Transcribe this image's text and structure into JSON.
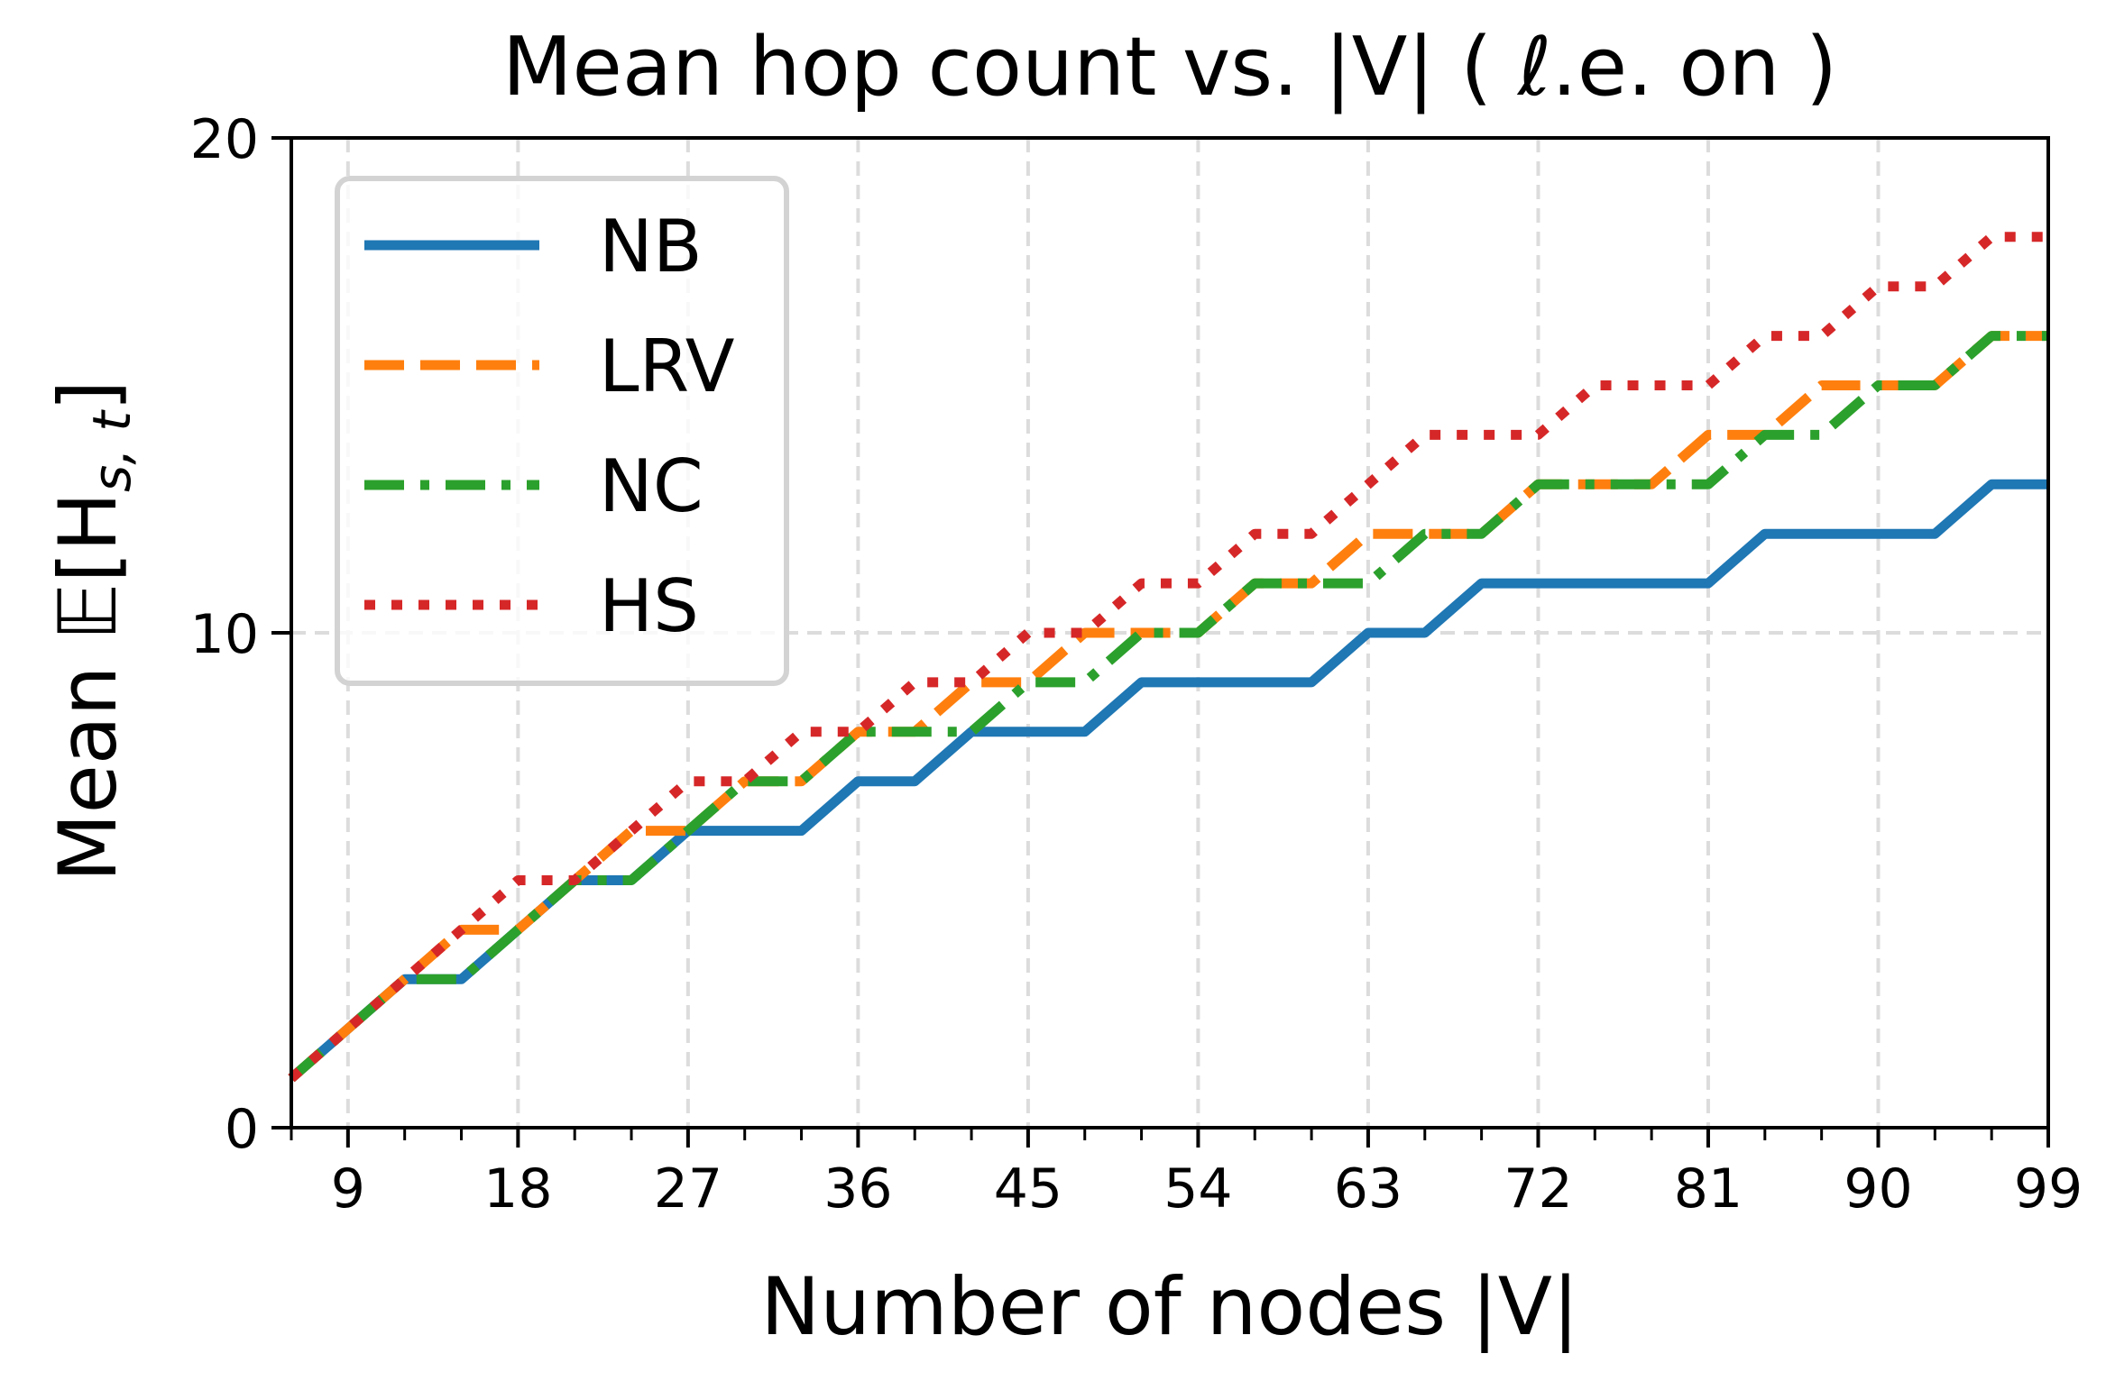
{
  "chart_data": {
    "type": "line",
    "title": "Mean hop count vs. |V| ( ℓ.e. on )",
    "xlabel": "Number of nodes |V|",
    "ylabel": "Mean Ê[H_{s,t}]",
    "xlim": [
      6,
      99
    ],
    "ylim": [
      0,
      20
    ],
    "xticks": [
      9,
      18,
      27,
      36,
      45,
      54,
      63,
      72,
      81,
      90,
      99
    ],
    "xminor_step": 3,
    "yticks": [
      0,
      10,
      20
    ],
    "grid": true,
    "legend_position": "upper left",
    "x": [
      6,
      9,
      12,
      15,
      18,
      21,
      24,
      27,
      30,
      33,
      36,
      39,
      42,
      45,
      48,
      51,
      54,
      57,
      60,
      63,
      66,
      69,
      72,
      75,
      78,
      81,
      84,
      87,
      90,
      93,
      96,
      99
    ],
    "series": [
      {
        "name": "NB",
        "color": "#1f77b4",
        "style": "solid",
        "values": [
          1,
          2,
          3,
          3,
          4,
          5,
          5,
          6,
          6,
          6,
          7,
          7,
          8,
          8,
          8,
          9,
          9,
          9,
          9,
          10,
          10,
          11,
          11,
          11,
          11,
          11,
          12,
          12,
          12,
          12,
          13,
          13
        ]
      },
      {
        "name": "LRV",
        "color": "#ff7f0e",
        "style": "dashed",
        "values": [
          1,
          2,
          3,
          4,
          4,
          5,
          6,
          6,
          7,
          7,
          8,
          8,
          9,
          9,
          10,
          10,
          10,
          11,
          11,
          12,
          12,
          12,
          13,
          13,
          13,
          14,
          14,
          15,
          15,
          15,
          16,
          16
        ]
      },
      {
        "name": "NC",
        "color": "#2ca02c",
        "style": "dashdot",
        "values": [
          1,
          2,
          3,
          3,
          4,
          5,
          5,
          6,
          7,
          7,
          8,
          8,
          8,
          9,
          9,
          10,
          10,
          11,
          11,
          11,
          12,
          12,
          13,
          13,
          13,
          13,
          14,
          14,
          15,
          15,
          16,
          16
        ]
      },
      {
        "name": "HS",
        "color": "#d62728",
        "style": "dotted",
        "values": [
          1,
          2,
          3,
          4,
          5,
          5,
          6,
          7,
          7,
          8,
          8,
          9,
          9,
          10,
          10,
          11,
          11,
          12,
          12,
          13,
          14,
          14,
          14,
          15,
          15,
          15,
          16,
          16,
          17,
          17,
          18,
          18
        ]
      }
    ]
  },
  "labels": {
    "title": "Mean hop count vs. |V| ( ℓ.e. on )",
    "xlabel": "Number of nodes |V|",
    "ylabel_prefix": "Mean ",
    "ylabel_E": "𝔼",
    "ylabel_hat": "^",
    "ylabel_body": "[H",
    "ylabel_sub": "s, t",
    "ylabel_close": "]"
  }
}
